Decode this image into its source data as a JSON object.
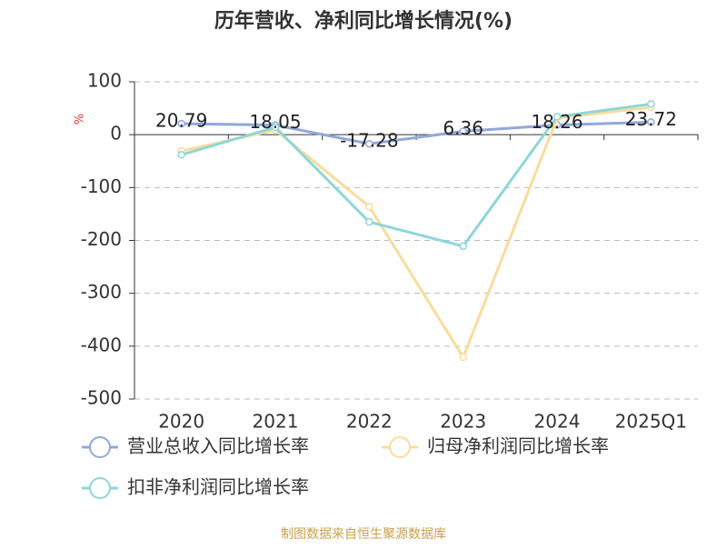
{
  "chart_data": {
    "type": "line",
    "title": "历年营收、净利同比增长情况(%)",
    "y_label": "%",
    "source": "制图数据来自恒生聚源数据库",
    "categories": [
      "2020",
      "2021",
      "2022",
      "2023",
      "2024",
      "2025Q1"
    ],
    "series": [
      {
        "name": "营业总收入同比增长率",
        "color": "#91a8d8",
        "values": [
          20.79,
          18.05,
          -17.28,
          6.36,
          18.26,
          23.72
        ],
        "show_labels": true
      },
      {
        "name": "归母净利润同比增长率",
        "color": "#f9dc9c",
        "values": [
          -31,
          9,
          -136,
          -421,
          31,
          52
        ],
        "show_labels": false
      },
      {
        "name": "扣非净利润同比增长率",
        "color": "#8fd6d8",
        "values": [
          -38,
          14,
          -165,
          -211,
          34,
          58
        ],
        "show_labels": false
      }
    ],
    "ylim": [
      -500,
      100
    ],
    "yticks": [
      -500,
      -400,
      -300,
      -200,
      -100,
      0,
      100
    ],
    "grid": true
  }
}
